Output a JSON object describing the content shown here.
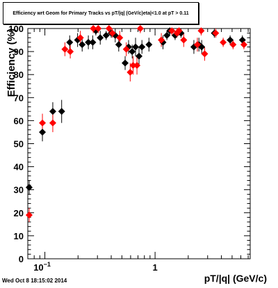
{
  "title": "Efficiency wrt Geom for Primary Tracks vs pT/|q| (GeV/c)eta|<1.0 at pT > 0.11",
  "timestamp": "Wed Oct  8 18:15:02 2014",
  "chart_data": {
    "type": "scatter",
    "title": "Efficiency wrt Geom for Primary Tracks vs pT/|q| (GeV/c)eta|<1.0 at pT > 0.11",
    "xlabel": "pT/|q| (GeV/c)",
    "ylabel": "Efficiency (%)",
    "xscale": "log",
    "xlim": [
      0.07,
      7.3
    ],
    "ylim": [
      0,
      100
    ],
    "x_tick_labels": [
      "10^-1",
      "1"
    ],
    "y_tick_labels": [
      "0",
      "10",
      "20",
      "30",
      "40",
      "50",
      "60",
      "70",
      "80",
      "90",
      "100"
    ],
    "grid": false,
    "legend": "none",
    "series": [
      {
        "color": "#000000",
        "marker": "diamond",
        "points": [
          {
            "x": 0.072,
            "y": 31,
            "err": 3
          },
          {
            "x": 0.095,
            "y": 55,
            "err": 4
          },
          {
            "x": 0.118,
            "y": 64,
            "err": 4
          },
          {
            "x": 0.142,
            "y": 64,
            "err": 5
          },
          {
            "x": 0.168,
            "y": 94,
            "err": 3
          },
          {
            "x": 0.198,
            "y": 95,
            "err": 3
          },
          {
            "x": 0.218,
            "y": 93,
            "err": 3
          },
          {
            "x": 0.248,
            "y": 94,
            "err": 3
          },
          {
            "x": 0.272,
            "y": 94,
            "err": 3
          },
          {
            "x": 0.29,
            "y": 99,
            "err": 2
          },
          {
            "x": 0.318,
            "y": 96,
            "err": 3
          },
          {
            "x": 0.36,
            "y": 97,
            "err": 2
          },
          {
            "x": 0.4,
            "y": 98,
            "err": 2
          },
          {
            "x": 0.435,
            "y": 97,
            "err": 3
          },
          {
            "x": 0.468,
            "y": 93,
            "err": 3
          },
          {
            "x": 0.535,
            "y": 85,
            "err": 3
          },
          {
            "x": 0.575,
            "y": 92,
            "err": 3
          },
          {
            "x": 0.62,
            "y": 90,
            "err": 3
          },
          {
            "x": 0.665,
            "y": 92,
            "err": 4
          },
          {
            "x": 0.715,
            "y": 88,
            "err": 4
          },
          {
            "x": 0.76,
            "y": 92,
            "err": 3
          },
          {
            "x": 0.88,
            "y": 93,
            "err": 3
          },
          {
            "x": 1.18,
            "y": 94,
            "err": 3
          },
          {
            "x": 1.28,
            "y": 97,
            "err": 2
          },
          {
            "x": 1.36,
            "y": 99,
            "err": 2
          },
          {
            "x": 1.52,
            "y": 97,
            "err": 2
          },
          {
            "x": 1.72,
            "y": 98,
            "err": 2
          },
          {
            "x": 2.25,
            "y": 92,
            "err": 3
          },
          {
            "x": 2.5,
            "y": 93,
            "err": 3
          },
          {
            "x": 2.65,
            "y": 92,
            "err": 3
          },
          {
            "x": 3.45,
            "y": 98,
            "err": 2
          },
          {
            "x": 4.8,
            "y": 95,
            "err": 2
          },
          {
            "x": 6.2,
            "y": 95,
            "err": 2
          }
        ]
      },
      {
        "color": "#ff0000",
        "marker": "diamond",
        "points": [
          {
            "x": 0.072,
            "y": 19,
            "err": 3
          },
          {
            "x": 0.095,
            "y": 59,
            "err": 4
          },
          {
            "x": 0.118,
            "y": 59,
            "err": 4
          },
          {
            "x": 0.152,
            "y": 91,
            "err": 3
          },
          {
            "x": 0.17,
            "y": 90,
            "err": 3
          },
          {
            "x": 0.21,
            "y": 96,
            "err": 3
          },
          {
            "x": 0.275,
            "y": 100,
            "err": 2
          },
          {
            "x": 0.305,
            "y": 100,
            "err": 2
          },
          {
            "x": 0.382,
            "y": 100,
            "err": 2
          },
          {
            "x": 0.41,
            "y": 98,
            "err": 2
          },
          {
            "x": 0.478,
            "y": 96,
            "err": 3
          },
          {
            "x": 0.548,
            "y": 91,
            "err": 3
          },
          {
            "x": 0.595,
            "y": 81,
            "err": 4
          },
          {
            "x": 0.632,
            "y": 84,
            "err": 4
          },
          {
            "x": 0.685,
            "y": 84,
            "err": 4
          },
          {
            "x": 0.735,
            "y": 100,
            "err": 2
          },
          {
            "x": 1.14,
            "y": 95,
            "err": 3
          },
          {
            "x": 1.42,
            "y": 99,
            "err": 2
          },
          {
            "x": 1.58,
            "y": 98,
            "err": 2
          },
          {
            "x": 1.65,
            "y": 99,
            "err": 2
          },
          {
            "x": 1.82,
            "y": 95,
            "err": 3
          },
          {
            "x": 2.42,
            "y": 93,
            "err": 3
          },
          {
            "x": 2.62,
            "y": 99,
            "err": 2
          },
          {
            "x": 2.82,
            "y": 89,
            "err": 3
          },
          {
            "x": 3.55,
            "y": 98,
            "err": 2
          },
          {
            "x": 4.15,
            "y": 94,
            "err": 2
          },
          {
            "x": 5.1,
            "y": 93,
            "err": 2
          },
          {
            "x": 6.4,
            "y": 93,
            "err": 2
          }
        ]
      }
    ]
  }
}
